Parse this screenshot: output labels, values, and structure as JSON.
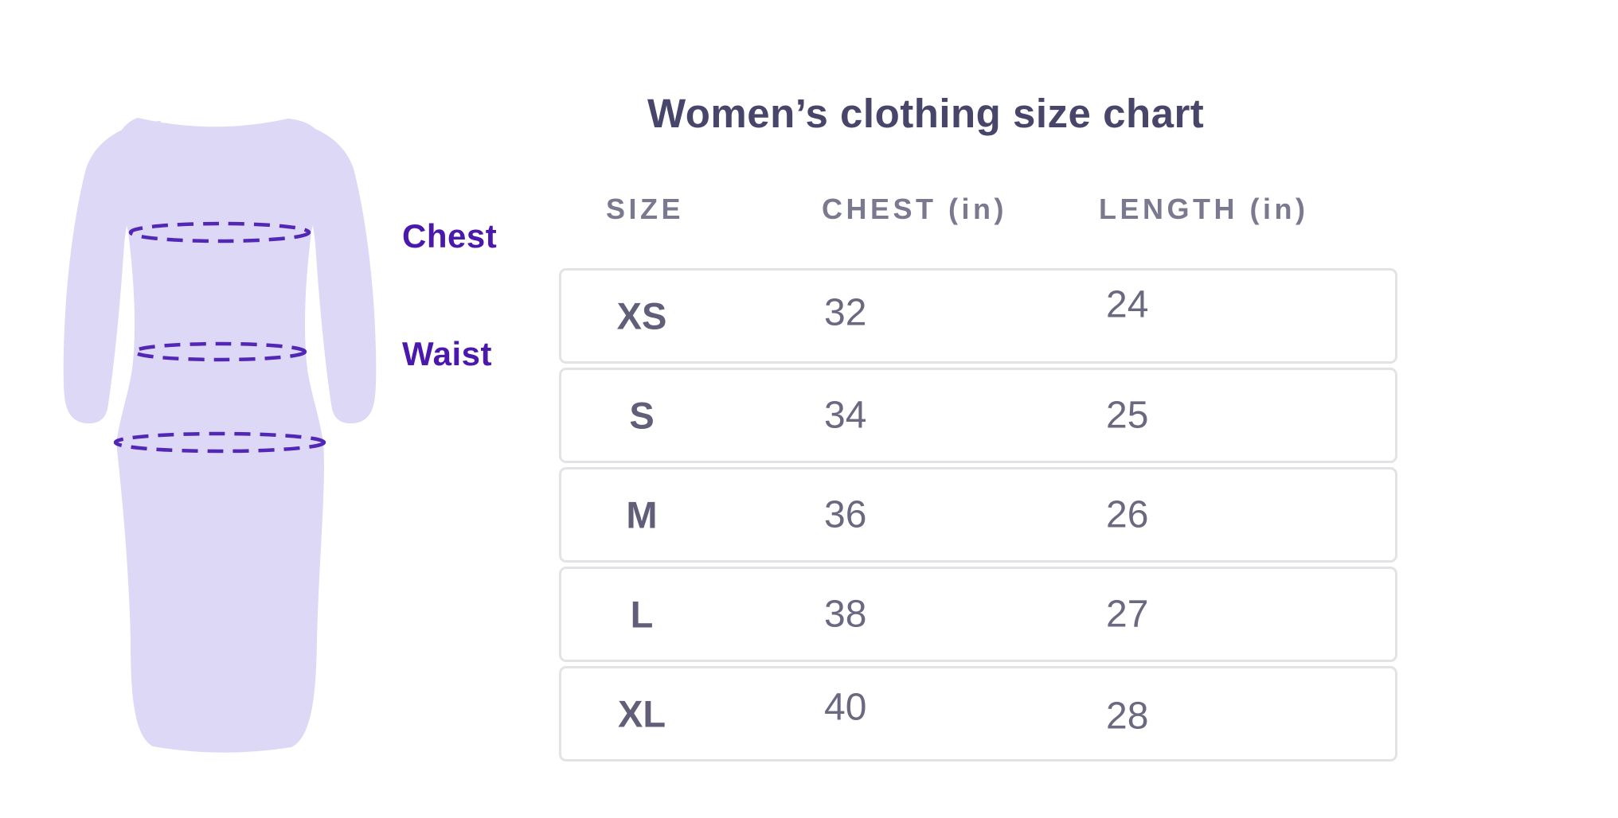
{
  "page": {
    "title": "Women’s clothing size chart"
  },
  "figure": {
    "labels": {
      "chest": "Chest",
      "waist": "Waist"
    },
    "colors": {
      "dress_fill": "#dcd8f6",
      "dash_stroke": "#5327b5",
      "label_text": "#4a18ac"
    }
  },
  "table": {
    "headers": [
      "SIZE",
      "CHEST (in)",
      "LENGTH (in)"
    ],
    "rows": [
      {
        "size": "XS",
        "chest": "32",
        "length": "24"
      },
      {
        "size": "S",
        "chest": "34",
        "length": "25"
      },
      {
        "size": "M",
        "chest": "36",
        "length": "26"
      },
      {
        "size": "L",
        "chest": "38",
        "length": "27"
      },
      {
        "size": "XL",
        "chest": "40",
        "length": "28"
      }
    ]
  },
  "colors": {
    "title_text": "#474569",
    "header_text": "#7b7990",
    "size_text": "#605e78",
    "value_text": "#6b6980",
    "row_border": "#e3e3e6",
    "background": "#ffffff"
  },
  "chart_data": {
    "type": "table",
    "title": "Women’s clothing size chart",
    "columns": [
      "SIZE",
      "CHEST (in)",
      "LENGTH (in)"
    ],
    "rows": [
      [
        "XS",
        32,
        24
      ],
      [
        "S",
        34,
        25
      ],
      [
        "M",
        36,
        26
      ],
      [
        "L",
        38,
        27
      ],
      [
        "XL",
        40,
        28
      ]
    ],
    "annotations": [
      "Chest",
      "Waist"
    ]
  }
}
